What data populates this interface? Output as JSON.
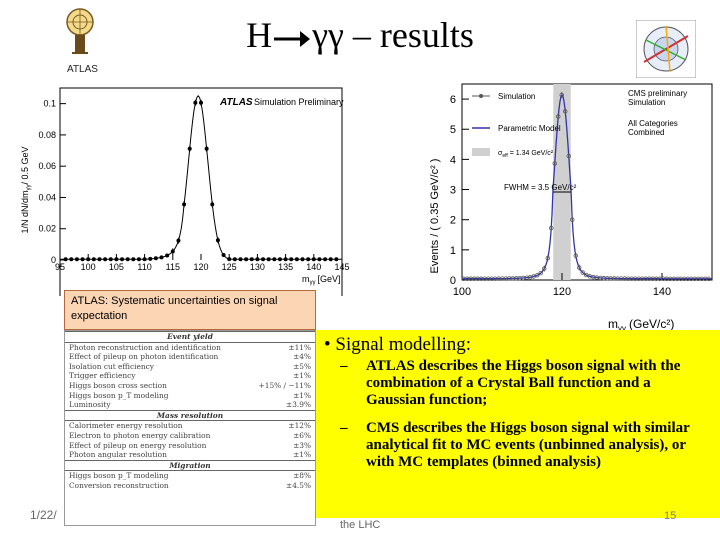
{
  "title": {
    "prefix": "H",
    "suffix": "γγ – results"
  },
  "logos": {
    "atlas_text": "ATLAS"
  },
  "atlas_plot": {
    "label_atlas": "ATLAS",
    "label_sim": "Simulation Preliminary",
    "ylabel": "1/N dN/dm",
    "ylabel_unit": "/ 0.5 GeV",
    "xlabel": "m",
    "xlabel_unit": "[GeV]",
    "xticks": [
      "95",
      "100",
      "105",
      "110",
      "115",
      "120",
      "125",
      "130",
      "135",
      "140",
      "145"
    ],
    "yticks": [
      "0",
      "0.02",
      "0.04",
      "0.06",
      "0.08",
      "0.1"
    ]
  },
  "cms_plot": {
    "ylabel": "Events / ( 0.35 GeV/c² )",
    "xlabel": "m",
    "xlabel_unit": "(GeV/c²)",
    "xticks": [
      "100",
      "120",
      "140"
    ],
    "yticks": [
      "0",
      "1",
      "2",
      "3",
      "4",
      "5",
      "6"
    ],
    "legend_title": "CMS preliminary",
    "legend_sub": "Simulation",
    "legend_sim": "Simulation",
    "legend_model": "Parametric Model",
    "legend_sigma": "σ",
    "legend_sigma_sub": "eff",
    "legend_sigma_val": " = 1.34 GeV/c²",
    "fwhm": "FWHM = 3.5 GeV/c²",
    "categories": "All Categories",
    "combined": "Combined"
  },
  "atlas_note": "ATLAS: Systematic uncertainties on signal expectation",
  "syst_table": {
    "sections": [
      {
        "title": "Event yield",
        "rows": [
          [
            "Photon reconstruction and identification",
            "±11%"
          ],
          [
            "Effect of pileup on photon identification",
            "±4%"
          ],
          [
            "Isolation cut efficiency",
            "±5%"
          ],
          [
            "Trigger efficiency",
            "±1%"
          ],
          [
            "Higgs boson cross section",
            "+15% / −11%"
          ],
          [
            "Higgs boson p_T modeling",
            "±1%"
          ],
          [
            "Luminosity",
            "±3.9%"
          ]
        ]
      },
      {
        "title": "Mass resolution",
        "rows": [
          [
            "Calorimeter energy resolution",
            "±12%"
          ],
          [
            "Electron to photon energy calibration",
            "±6%"
          ],
          [
            "Effect of pileup on energy resolution",
            "±3%"
          ],
          [
            "Photon angular resolution",
            "±1%"
          ]
        ]
      },
      {
        "title": "Migration",
        "rows": [
          [
            "Higgs boson p_T modeling",
            "±8%"
          ],
          [
            "Conversion reconstruction",
            "±4.5%"
          ]
        ]
      }
    ]
  },
  "bullets": {
    "main": "Signal modelling:",
    "sub1": "ATLAS describes the Higgs boson signal with the combination of a Crystal Ball function and a Gaussian function;",
    "sub2": "CMS describes the Higgs boson signal with similar analytical fit to MC events (unbinned analysis), or with MC templates (binned analysis)"
  },
  "footer": {
    "date": "1/22/",
    "text": "the LHC",
    "page": "15"
  },
  "colors": {
    "yellow": "#ffff00",
    "note_bg": "#fcd5b4",
    "cms_line": "#3333aa",
    "band": "#d0d0d0"
  }
}
